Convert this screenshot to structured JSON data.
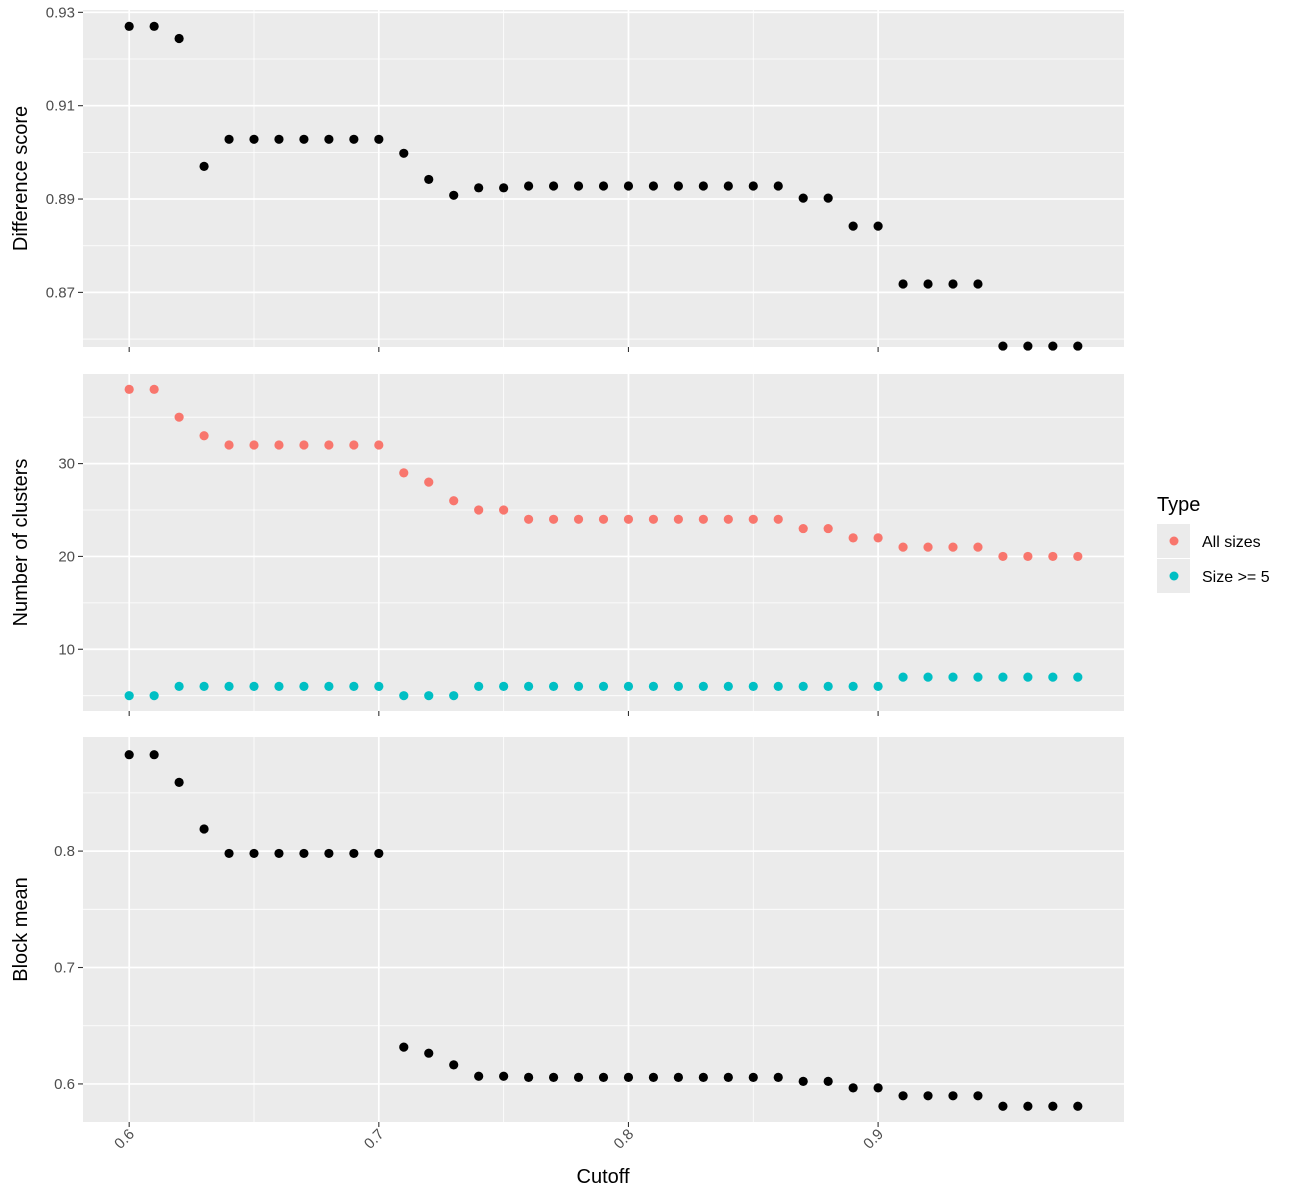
{
  "chart_data": {
    "type": "scatter",
    "x_title": "Cutoff",
    "x_ticks": [
      0.6,
      0.7,
      0.8,
      0.9
    ],
    "x_tick_labels": [
      "0.6",
      "0.7",
      "0.8",
      "0.9"
    ],
    "x_range": [
      0.5815,
      0.9985
    ],
    "grid": true,
    "x": [
      0.6,
      0.61,
      0.62,
      0.63,
      0.64,
      0.65,
      0.66,
      0.67,
      0.68,
      0.69,
      0.7,
      0.71,
      0.72,
      0.73,
      0.74,
      0.75,
      0.76,
      0.77,
      0.78,
      0.79,
      0.8,
      0.81,
      0.82,
      0.83,
      0.84,
      0.85,
      0.86,
      0.87,
      0.88,
      0.89,
      0.9,
      0.91,
      0.92,
      0.93,
      0.94,
      0.95,
      0.96,
      0.97,
      0.98
    ],
    "panels": [
      {
        "ylabel": "Difference score",
        "ylim": [
          0.8583,
          0.9305
        ],
        "y_major": [
          0.87,
          0.89,
          0.91,
          0.93
        ],
        "y_tick_labels": [
          "0.87",
          "0.89",
          "0.91",
          "0.93"
        ],
        "y_minor": [
          0.86,
          0.88,
          0.9,
          0.92
        ],
        "series": [
          {
            "color": "#000000",
            "values": [
              0.927,
              0.927,
              0.9244,
              0.897,
              0.9028,
              0.9028,
              0.9028,
              0.9028,
              0.9028,
              0.9028,
              0.9028,
              0.8998,
              0.8942,
              0.8908,
              0.8924,
              0.8924,
              0.8928,
              0.8928,
              0.8928,
              0.8928,
              0.8928,
              0.8928,
              0.8928,
              0.8928,
              0.8928,
              0.8928,
              0.8928,
              0.8902,
              0.8902,
              0.8842,
              0.8842,
              0.8718,
              0.8718,
              0.8718,
              0.8718,
              0.8585,
              0.8585,
              0.8585,
              0.8585
            ]
          }
        ]
      },
      {
        "ylabel": "Number of clusters",
        "ylim": [
          3.35,
          39.65
        ],
        "y_major": [
          10,
          20,
          30
        ],
        "y_tick_labels": [
          "10",
          "20",
          "30"
        ],
        "y_minor": [
          5,
          15,
          25,
          35
        ],
        "series": [
          {
            "name": "All sizes",
            "color": "#F8766D",
            "values": [
              38,
              38,
              35,
              33,
              32,
              32,
              32,
              32,
              32,
              32,
              32,
              29,
              28,
              26,
              25,
              25,
              24,
              24,
              24,
              24,
              24,
              24,
              24,
              24,
              24,
              24,
              24,
              23,
              23,
              22,
              22,
              21,
              21,
              21,
              21,
              20,
              20,
              20,
              20
            ]
          },
          {
            "name": "Size >= 5",
            "color": "#00BFC4",
            "values": [
              5,
              5,
              6,
              6,
              6,
              6,
              6,
              6,
              6,
              6,
              6,
              5,
              5,
              5,
              6,
              6,
              6,
              6,
              6,
              6,
              6,
              6,
              6,
              6,
              6,
              6,
              6,
              6,
              6,
              6,
              6,
              7,
              7,
              7,
              7,
              7,
              7,
              7,
              7
            ]
          }
        ]
      },
      {
        "ylabel": "Block mean",
        "ylim": [
          0.5673,
          0.898
        ],
        "y_major": [
          0.6,
          0.7,
          0.8
        ],
        "y_tick_labels": [
          "0.6",
          "0.7",
          "0.8"
        ],
        "y_minor": [
          0.65,
          0.75,
          0.85
        ],
        "series": [
          {
            "color": "#000000",
            "values": [
              0.8828,
              0.8828,
              0.859,
              0.819,
              0.798,
              0.798,
              0.798,
              0.798,
              0.798,
              0.798,
              0.798,
              0.6316,
              0.6264,
              0.6164,
              0.6066,
              0.6066,
              0.6056,
              0.6056,
              0.6056,
              0.6056,
              0.6056,
              0.6056,
              0.6056,
              0.6056,
              0.6056,
              0.6056,
              0.6056,
              0.6022,
              0.6022,
              0.5966,
              0.5966,
              0.5898,
              0.5898,
              0.5898,
              0.5898,
              0.5808,
              0.5808,
              0.5808,
              0.5808
            ]
          }
        ]
      }
    ],
    "legend": {
      "title": "Type",
      "position": "right",
      "items": [
        {
          "label": "All sizes",
          "color": "#F8766D"
        },
        {
          "label": "Size >= 5",
          "color": "#00BFC4"
        }
      ]
    }
  }
}
